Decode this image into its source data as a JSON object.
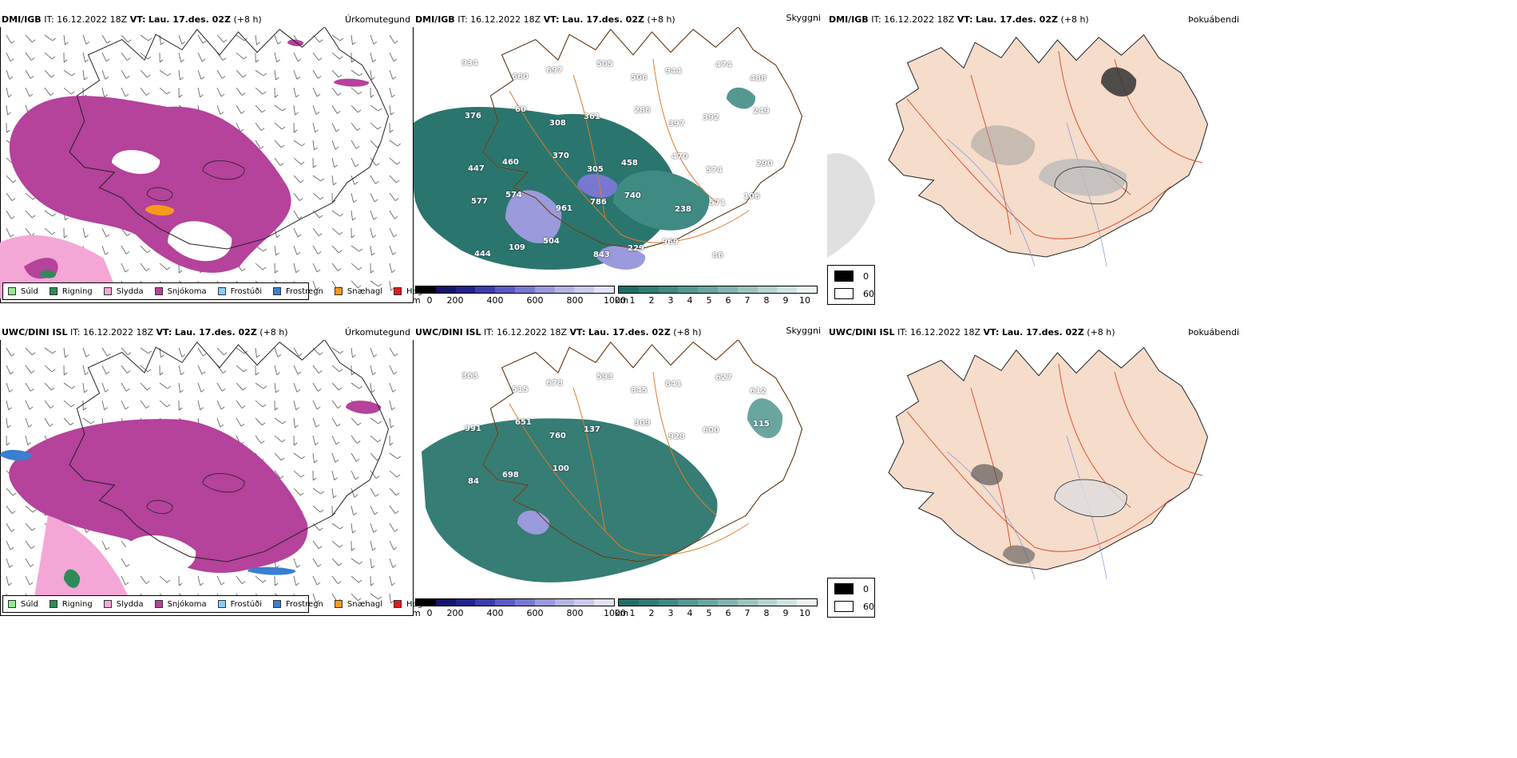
{
  "rows": [
    {
      "model": "DMI/IGB",
      "it_label": "IT:",
      "it_value": "16.12.2022 18Z",
      "vt_label": "VT:",
      "vt_value": "Lau. 17.des. 02Z",
      "lead": "(+8 h)",
      "precip_title": "Úrkomutegund",
      "vis_title": "Skyggni",
      "cloud_title": "Þokuábendi",
      "vis_labels": [
        "934",
        "660",
        "697",
        "505",
        "506",
        "944",
        "474",
        "488",
        "376",
        "60",
        "308",
        "361",
        "286",
        "397",
        "392",
        "249",
        "447",
        "460",
        "370",
        "305",
        "458",
        "470",
        "574",
        "290",
        "577",
        "574",
        "961",
        "786",
        "740",
        "238",
        "571",
        "106",
        "444",
        "109",
        "504",
        "843",
        "229",
        "969",
        "86"
      ]
    },
    {
      "model": "UWC/DINI ISL",
      "it_label": "IT:",
      "it_value": "16.12.2022 18Z",
      "vt_label": "VT:",
      "vt_value": "Lau. 17.des. 02Z",
      "lead": "(+8 h)",
      "precip_title": "Úrkomutegund",
      "vis_title": "Skyggni",
      "cloud_title": "Þokuábendi",
      "vis_labels": [
        "363",
        "515",
        "678",
        "593",
        "845",
        "841",
        "627",
        "612",
        "991",
        "651",
        "760",
        "137",
        "309",
        "928",
        "600",
        "115",
        "84",
        "698",
        "100"
      ]
    }
  ],
  "precip_legend": [
    {
      "label": "Súld",
      "color": "#90ee90"
    },
    {
      "label": "Rigning",
      "color": "#2e8b57"
    },
    {
      "label": "Slydda",
      "color": "#f4a6d7"
    },
    {
      "label": "Snjókoma",
      "color": "#b5429b"
    },
    {
      "label": "Frostúði",
      "color": "#87cefa"
    },
    {
      "label": "Frostregn",
      "color": "#3a7fd0"
    },
    {
      "label": "Snæhagl",
      "color": "#f59a1a"
    },
    {
      "label": "Haglél",
      "color": "#e81818"
    }
  ],
  "vis_scale_m": {
    "unit": "m",
    "ticks": [
      "0",
      "200",
      "400",
      "600",
      "800",
      "1000"
    ],
    "colors": [
      "#000000",
      "#14146b",
      "#23238f",
      "#3c3cae",
      "#5a5ac4",
      "#7878d2",
      "#9a9adc",
      "#b4b4e6",
      "#cacaee",
      "#e2e2f6"
    ]
  },
  "vis_scale_km": {
    "unit": "km",
    "ticks": [
      "1",
      "2",
      "3",
      "4",
      "5",
      "6",
      "7",
      "8",
      "9",
      "10"
    ],
    "colors": [
      "#1f6f66",
      "#2f7d74",
      "#3f8a82",
      "#549892",
      "#6aa6a0",
      "#82b4b0",
      "#9bc4c0",
      "#b5d4d1",
      "#cfe4e2",
      "#eaf4f3"
    ]
  },
  "cloud_legend": [
    {
      "label": "0",
      "color": "#000000"
    },
    {
      "label": "60",
      "color": "#ffffff"
    }
  ]
}
